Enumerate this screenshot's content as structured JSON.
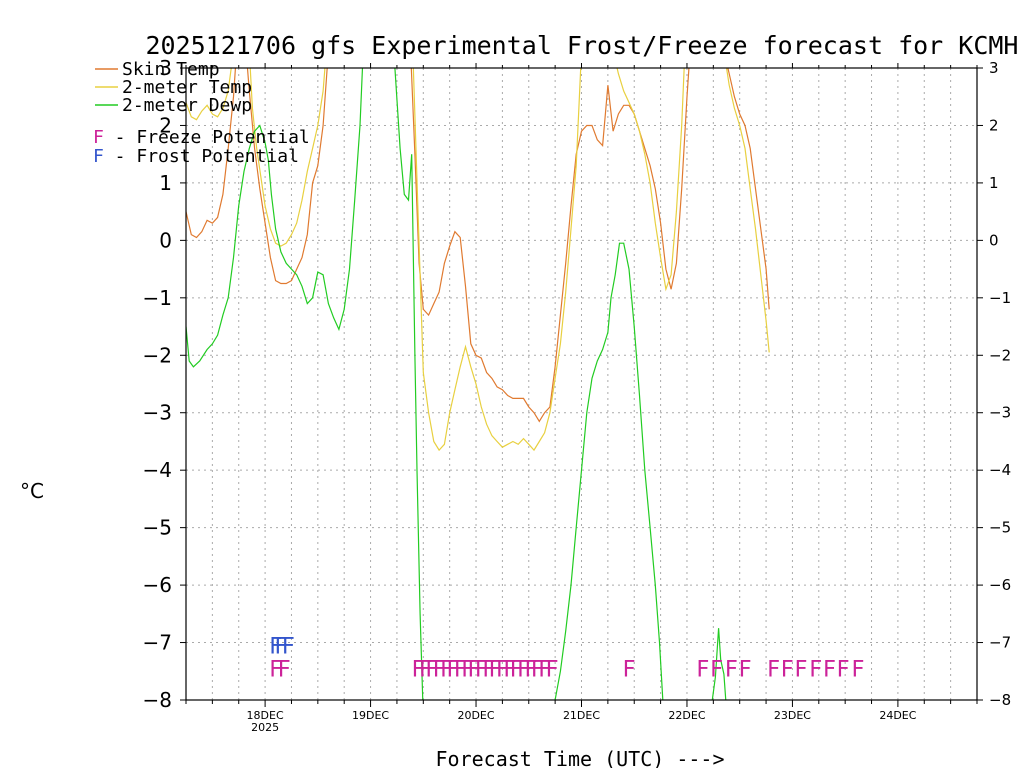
{
  "chart_data": {
    "type": "line",
    "title": "2025121706 gfs Experimental Frost/Freeze forecast for KCMH",
    "xlabel": "Forecast Time (UTC) --->",
    "ylabel": "°C",
    "ylim": [
      -8,
      3
    ],
    "yticks": [
      "3",
      "2",
      "1",
      "0",
      "−1",
      "−2",
      "−3",
      "−4",
      "−5",
      "−6",
      "−7",
      "−8"
    ],
    "ytick_values": [
      3,
      2,
      1,
      0,
      -1,
      -2,
      -3,
      -4,
      -5,
      -6,
      -7,
      -8
    ],
    "xlim_days": [
      -0.75,
      6.75
    ],
    "xticks": [
      {
        "label": "18DEC",
        "sub": "2025",
        "day": 0
      },
      {
        "label": "19DEC",
        "sub": "",
        "day": 1
      },
      {
        "label": "20DEC",
        "sub": "",
        "day": 2
      },
      {
        "label": "21DEC",
        "sub": "",
        "day": 3
      },
      {
        "label": "22DEC",
        "sub": "",
        "day": 4
      },
      {
        "label": "23DEC",
        "sub": "",
        "day": 5
      },
      {
        "label": "24DEC",
        "sub": "",
        "day": 6
      }
    ],
    "grid": true,
    "legend": {
      "position": "top-left",
      "entries": [
        {
          "label": "Skin Temp",
          "color": "#e07a30"
        },
        {
          "label": "2-meter Temp",
          "color": "#e8d040"
        },
        {
          "label": "2-meter Dewp",
          "color": "#22cc22"
        }
      ],
      "flags": [
        {
          "letter": "F",
          "text": " - Freeze Potential",
          "color": "#cc2299"
        },
        {
          "letter": "F",
          "text": " - Frost Potential",
          "color": "#3355cc"
        }
      ]
    },
    "series": [
      {
        "name": "Skin Temp",
        "color": "#e07a30",
        "points": [
          [
            -0.75,
            0.5
          ],
          [
            -0.7,
            0.1
          ],
          [
            -0.65,
            0.05
          ],
          [
            -0.6,
            0.15
          ],
          [
            -0.55,
            0.35
          ],
          [
            -0.5,
            0.3
          ],
          [
            -0.45,
            0.4
          ],
          [
            -0.4,
            0.8
          ],
          [
            -0.35,
            1.6
          ],
          [
            -0.3,
            2.5
          ],
          [
            -0.27,
            3.3
          ],
          [
            -0.18,
            3.3
          ],
          [
            -0.15,
            2.6
          ],
          [
            -0.1,
            1.6
          ],
          [
            -0.05,
            0.9
          ],
          [
            0.0,
            0.3
          ],
          [
            0.05,
            -0.3
          ],
          [
            0.1,
            -0.7
          ],
          [
            0.15,
            -0.75
          ],
          [
            0.2,
            -0.75
          ],
          [
            0.25,
            -0.7
          ],
          [
            0.3,
            -0.5
          ],
          [
            0.35,
            -0.3
          ],
          [
            0.4,
            0.1
          ],
          [
            0.45,
            1.0
          ],
          [
            0.5,
            1.3
          ],
          [
            0.55,
            2.0
          ],
          [
            0.6,
            3.3
          ],
          [
            1.38,
            3.3
          ],
          [
            1.42,
            1.5
          ],
          [
            1.46,
            -0.4
          ],
          [
            1.5,
            -1.2
          ],
          [
            1.55,
            -1.3
          ],
          [
            1.6,
            -1.1
          ],
          [
            1.65,
            -0.9
          ],
          [
            1.7,
            -0.4
          ],
          [
            1.75,
            -0.1
          ],
          [
            1.8,
            0.15
          ],
          [
            1.85,
            0.05
          ],
          [
            1.9,
            -0.8
          ],
          [
            1.95,
            -1.8
          ],
          [
            2.0,
            -2.0
          ],
          [
            2.05,
            -2.05
          ],
          [
            2.1,
            -2.3
          ],
          [
            2.15,
            -2.4
          ],
          [
            2.2,
            -2.55
          ],
          [
            2.25,
            -2.6
          ],
          [
            2.3,
            -2.7
          ],
          [
            2.35,
            -2.75
          ],
          [
            2.4,
            -2.75
          ],
          [
            2.45,
            -2.75
          ],
          [
            2.5,
            -2.9
          ],
          [
            2.55,
            -3.0
          ],
          [
            2.6,
            -3.15
          ],
          [
            2.65,
            -3.0
          ],
          [
            2.7,
            -2.9
          ],
          [
            2.75,
            -2.2
          ],
          [
            2.8,
            -1.3
          ],
          [
            2.85,
            -0.4
          ],
          [
            2.9,
            0.6
          ],
          [
            2.95,
            1.5
          ],
          [
            3.0,
            1.9
          ],
          [
            3.05,
            2.0
          ],
          [
            3.1,
            2.0
          ],
          [
            3.15,
            1.75
          ],
          [
            3.2,
            1.65
          ],
          [
            3.25,
            2.7
          ],
          [
            3.3,
            1.9
          ],
          [
            3.35,
            2.2
          ],
          [
            3.4,
            2.35
          ],
          [
            3.45,
            2.35
          ],
          [
            3.5,
            2.2
          ],
          [
            3.55,
            1.9
          ],
          [
            3.6,
            1.6
          ],
          [
            3.65,
            1.3
          ],
          [
            3.7,
            0.9
          ],
          [
            3.75,
            0.3
          ],
          [
            3.8,
            -0.5
          ],
          [
            3.85,
            -0.85
          ],
          [
            3.9,
            -0.4
          ],
          [
            3.95,
            0.9
          ],
          [
            4.0,
            2.5
          ],
          [
            4.03,
            3.3
          ],
          [
            4.35,
            3.3
          ],
          [
            4.4,
            2.9
          ],
          [
            4.45,
            2.5
          ],
          [
            4.5,
            2.2
          ],
          [
            4.55,
            2.0
          ],
          [
            4.6,
            1.6
          ],
          [
            4.65,
            0.9
          ],
          [
            4.7,
            0.2
          ],
          [
            4.75,
            -0.5
          ],
          [
            4.78,
            -1.2
          ]
        ]
      },
      {
        "name": "2-meter Temp",
        "color": "#e8d040",
        "points": [
          [
            -0.75,
            2.4
          ],
          [
            -0.7,
            2.15
          ],
          [
            -0.65,
            2.1
          ],
          [
            -0.6,
            2.25
          ],
          [
            -0.55,
            2.35
          ],
          [
            -0.5,
            2.2
          ],
          [
            -0.45,
            2.15
          ],
          [
            -0.4,
            2.3
          ],
          [
            -0.35,
            2.6
          ],
          [
            -0.3,
            3.3
          ],
          [
            -0.15,
            3.3
          ],
          [
            -0.12,
            2.3
          ],
          [
            -0.08,
            1.6
          ],
          [
            -0.04,
            1.1
          ],
          [
            0.0,
            0.6
          ],
          [
            0.05,
            0.2
          ],
          [
            0.1,
            -0.05
          ],
          [
            0.15,
            -0.1
          ],
          [
            0.2,
            -0.05
          ],
          [
            0.25,
            0.1
          ],
          [
            0.3,
            0.3
          ],
          [
            0.35,
            0.7
          ],
          [
            0.4,
            1.2
          ],
          [
            0.45,
            1.6
          ],
          [
            0.5,
            2.0
          ],
          [
            0.55,
            2.6
          ],
          [
            0.58,
            3.3
          ],
          [
            1.4,
            3.3
          ],
          [
            1.45,
            0.5
          ],
          [
            1.5,
            -2.3
          ],
          [
            1.55,
            -3.0
          ],
          [
            1.6,
            -3.5
          ],
          [
            1.65,
            -3.65
          ],
          [
            1.7,
            -3.55
          ],
          [
            1.75,
            -3.0
          ],
          [
            1.8,
            -2.6
          ],
          [
            1.85,
            -2.2
          ],
          [
            1.9,
            -1.85
          ],
          [
            1.95,
            -2.2
          ],
          [
            2.0,
            -2.5
          ],
          [
            2.05,
            -2.9
          ],
          [
            2.1,
            -3.2
          ],
          [
            2.15,
            -3.4
          ],
          [
            2.2,
            -3.5
          ],
          [
            2.25,
            -3.6
          ],
          [
            2.3,
            -3.55
          ],
          [
            2.35,
            -3.5
          ],
          [
            2.4,
            -3.55
          ],
          [
            2.45,
            -3.45
          ],
          [
            2.5,
            -3.55
          ],
          [
            2.55,
            -3.65
          ],
          [
            2.6,
            -3.5
          ],
          [
            2.65,
            -3.35
          ],
          [
            2.7,
            -3.0
          ],
          [
            2.75,
            -2.4
          ],
          [
            2.8,
            -1.8
          ],
          [
            2.85,
            -0.9
          ],
          [
            2.9,
            0.2
          ],
          [
            2.95,
            1.3
          ],
          [
            2.98,
            2.5
          ],
          [
            3.0,
            3.3
          ],
          [
            3.3,
            3.3
          ],
          [
            3.35,
            2.9
          ],
          [
            3.4,
            2.6
          ],
          [
            3.45,
            2.4
          ],
          [
            3.5,
            2.2
          ],
          [
            3.55,
            1.9
          ],
          [
            3.6,
            1.5
          ],
          [
            3.65,
            1.0
          ],
          [
            3.7,
            0.3
          ],
          [
            3.75,
            -0.3
          ],
          [
            3.8,
            -0.85
          ],
          [
            3.85,
            -0.6
          ],
          [
            3.9,
            0.5
          ],
          [
            3.95,
            2.0
          ],
          [
            3.98,
            3.3
          ],
          [
            4.35,
            3.3
          ],
          [
            4.4,
            2.7
          ],
          [
            4.45,
            2.3
          ],
          [
            4.5,
            2.0
          ],
          [
            4.55,
            1.6
          ],
          [
            4.6,
            0.9
          ],
          [
            4.65,
            0.2
          ],
          [
            4.7,
            -0.6
          ],
          [
            4.75,
            -1.4
          ],
          [
            4.78,
            -1.95
          ]
        ]
      },
      {
        "name": "2-meter Dewp",
        "color": "#22cc22",
        "points": [
          [
            -0.75,
            -1.5
          ],
          [
            -0.72,
            -2.1
          ],
          [
            -0.68,
            -2.2
          ],
          [
            -0.62,
            -2.1
          ],
          [
            -0.55,
            -1.9
          ],
          [
            -0.5,
            -1.8
          ],
          [
            -0.45,
            -1.65
          ],
          [
            -0.4,
            -1.3
          ],
          [
            -0.35,
            -1.0
          ],
          [
            -0.3,
            -0.3
          ],
          [
            -0.25,
            0.6
          ],
          [
            -0.2,
            1.2
          ],
          [
            -0.15,
            1.6
          ],
          [
            -0.1,
            1.9
          ],
          [
            -0.05,
            2.0
          ],
          [
            0.0,
            1.7
          ],
          [
            0.03,
            1.4
          ],
          [
            0.06,
            0.8
          ],
          [
            0.1,
            0.2
          ],
          [
            0.15,
            -0.2
          ],
          [
            0.2,
            -0.4
          ],
          [
            0.25,
            -0.5
          ],
          [
            0.3,
            -0.6
          ],
          [
            0.35,
            -0.8
          ],
          [
            0.4,
            -1.1
          ],
          [
            0.45,
            -1.0
          ],
          [
            0.5,
            -0.55
          ],
          [
            0.55,
            -0.6
          ],
          [
            0.6,
            -1.1
          ],
          [
            0.65,
            -1.35
          ],
          [
            0.7,
            -1.55
          ],
          [
            0.75,
            -1.2
          ],
          [
            0.8,
            -0.5
          ],
          [
            0.85,
            0.7
          ],
          [
            0.9,
            2.0
          ],
          [
            0.93,
            3.3
          ],
          [
            1.22,
            3.3
          ],
          [
            1.28,
            1.6
          ],
          [
            1.32,
            0.8
          ],
          [
            1.36,
            0.7
          ],
          [
            1.39,
            1.5
          ],
          [
            1.42,
            -2.0
          ],
          [
            1.44,
            -4.0
          ],
          [
            1.47,
            -6.5
          ],
          [
            1.5,
            -8.3
          ],
          [
            2.72,
            -8.3
          ],
          [
            2.75,
            -8.0
          ],
          [
            2.8,
            -7.5
          ],
          [
            2.85,
            -6.8
          ],
          [
            2.9,
            -6.0
          ],
          [
            2.95,
            -5.0
          ],
          [
            3.0,
            -4.0
          ],
          [
            3.05,
            -3.0
          ],
          [
            3.1,
            -2.4
          ],
          [
            3.15,
            -2.1
          ],
          [
            3.2,
            -1.9
          ],
          [
            3.25,
            -1.6
          ],
          [
            3.28,
            -1.0
          ],
          [
            3.32,
            -0.6
          ],
          [
            3.36,
            -0.05
          ],
          [
            3.4,
            -0.05
          ],
          [
            3.45,
            -0.5
          ],
          [
            3.5,
            -1.5
          ],
          [
            3.55,
            -2.7
          ],
          [
            3.6,
            -4.0
          ],
          [
            3.65,
            -5.0
          ],
          [
            3.7,
            -6.0
          ],
          [
            3.74,
            -7.0
          ],
          [
            3.78,
            -8.3
          ],
          [
            4.2,
            -8.3
          ],
          [
            4.24,
            -8.0
          ],
          [
            4.27,
            -7.6
          ],
          [
            4.3,
            -6.75
          ],
          [
            4.32,
            -7.3
          ],
          [
            4.35,
            -7.55
          ],
          [
            4.38,
            -8.3
          ]
        ]
      }
    ],
    "flags": [
      {
        "type": "Freeze",
        "letter": "F",
        "color": "#cc2299",
        "y": -7.45,
        "days": [
          0.1,
          0.18,
          1.45,
          1.52,
          1.58,
          1.65,
          1.72,
          1.78,
          1.85,
          1.92,
          1.98,
          2.05,
          2.12,
          2.18,
          2.25,
          2.32,
          2.38,
          2.45,
          2.52,
          2.58,
          2.65,
          2.72,
          3.45,
          4.15,
          4.28,
          4.42,
          4.55,
          4.82,
          4.95,
          5.08,
          5.22,
          5.35,
          5.48,
          5.62
        ]
      },
      {
        "type": "Frost",
        "letter": "F",
        "color": "#3355cc",
        "y": -7.05,
        "days": [
          0.1,
          0.15,
          0.22
        ]
      }
    ]
  }
}
